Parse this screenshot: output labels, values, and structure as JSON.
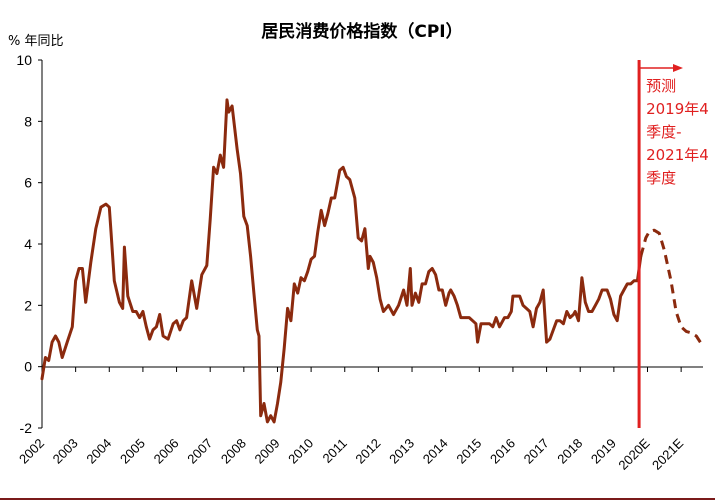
{
  "chart_data": {
    "type": "line",
    "title": "居民消费价格指数（CPI）",
    "ylabel": "% 年同比",
    "xlabel": "",
    "ylim": [
      -2,
      10
    ],
    "yticks": [
      -2,
      0,
      2,
      4,
      6,
      8,
      10
    ],
    "categories": [
      "2002",
      "2003",
      "2004",
      "2005",
      "2006",
      "2007",
      "2008",
      "2009",
      "2010",
      "2011",
      "2012",
      "2013",
      "2014",
      "2015",
      "2016",
      "2017",
      "2018",
      "2019",
      "2020E",
      "2021E"
    ],
    "grid": false,
    "legend": "none",
    "series": [
      {
        "style": "solid",
        "color": "#8b2a0e",
        "points": [
          [
            2002.0,
            -0.4
          ],
          [
            2002.1,
            0.3
          ],
          [
            2002.2,
            0.2
          ],
          [
            2002.3,
            0.8
          ],
          [
            2002.4,
            1.0
          ],
          [
            2002.5,
            0.8
          ],
          [
            2002.6,
            0.3
          ],
          [
            2002.75,
            0.8
          ],
          [
            2002.9,
            1.3
          ],
          [
            2003.0,
            2.8
          ],
          [
            2003.1,
            3.2
          ],
          [
            2003.2,
            3.2
          ],
          [
            2003.3,
            2.1
          ],
          [
            2003.45,
            3.4
          ],
          [
            2003.6,
            4.5
          ],
          [
            2003.75,
            5.2
          ],
          [
            2003.9,
            5.3
          ],
          [
            2004.0,
            5.2
          ],
          [
            2004.05,
            4.4
          ],
          [
            2004.15,
            2.8
          ],
          [
            2004.3,
            2.1
          ],
          [
            2004.4,
            1.9
          ],
          [
            2004.45,
            3.9
          ],
          [
            2004.55,
            2.3
          ],
          [
            2004.7,
            1.8
          ],
          [
            2004.8,
            1.8
          ],
          [
            2004.9,
            1.6
          ],
          [
            2005.0,
            1.8
          ],
          [
            2005.1,
            1.3
          ],
          [
            2005.2,
            0.9
          ],
          [
            2005.3,
            1.2
          ],
          [
            2005.4,
            1.3
          ],
          [
            2005.5,
            1.7
          ],
          [
            2005.6,
            1.0
          ],
          [
            2005.75,
            0.9
          ],
          [
            2005.9,
            1.4
          ],
          [
            2006.0,
            1.5
          ],
          [
            2006.1,
            1.2
          ],
          [
            2006.2,
            1.5
          ],
          [
            2006.3,
            1.6
          ],
          [
            2006.45,
            2.8
          ],
          [
            2006.6,
            1.9
          ],
          [
            2006.75,
            3.0
          ],
          [
            2006.9,
            3.3
          ],
          [
            2007.0,
            4.8
          ],
          [
            2007.1,
            6.5
          ],
          [
            2007.2,
            6.3
          ],
          [
            2007.3,
            6.9
          ],
          [
            2007.4,
            6.5
          ],
          [
            2007.5,
            8.7
          ],
          [
            2007.55,
            8.3
          ],
          [
            2007.65,
            8.5
          ],
          [
            2007.8,
            7.1
          ],
          [
            2007.9,
            6.3
          ],
          [
            2008.0,
            4.9
          ],
          [
            2008.1,
            4.6
          ],
          [
            2008.2,
            3.6
          ],
          [
            2008.3,
            2.4
          ],
          [
            2008.4,
            1.2
          ],
          [
            2008.45,
            1.0
          ],
          [
            2008.5,
            -1.6
          ],
          [
            2008.6,
            -1.2
          ],
          [
            2008.7,
            -1.8
          ],
          [
            2008.8,
            -1.6
          ],
          [
            2008.9,
            -1.8
          ],
          [
            2009.0,
            -1.2
          ],
          [
            2009.1,
            -0.5
          ],
          [
            2009.2,
            0.6
          ],
          [
            2009.3,
            1.9
          ],
          [
            2009.4,
            1.5
          ],
          [
            2009.5,
            2.7
          ],
          [
            2009.6,
            2.4
          ],
          [
            2009.7,
            2.9
          ],
          [
            2009.8,
            2.8
          ],
          [
            2009.9,
            3.1
          ],
          [
            2010.0,
            3.5
          ],
          [
            2010.1,
            3.6
          ],
          [
            2010.2,
            4.4
          ],
          [
            2010.3,
            5.1
          ],
          [
            2010.4,
            4.6
          ],
          [
            2010.5,
            5.0
          ],
          [
            2010.6,
            5.5
          ],
          [
            2010.7,
            5.5
          ],
          [
            2010.85,
            6.4
          ],
          [
            2010.95,
            6.5
          ],
          [
            2011.05,
            6.2
          ],
          [
            2011.15,
            6.1
          ],
          [
            2011.3,
            5.5
          ],
          [
            2011.4,
            4.2
          ],
          [
            2011.5,
            4.1
          ],
          [
            2011.6,
            4.5
          ],
          [
            2011.7,
            3.2
          ],
          [
            2011.75,
            3.6
          ],
          [
            2011.85,
            3.4
          ],
          [
            2011.95,
            2.9
          ],
          [
            2012.05,
            2.2
          ],
          [
            2012.15,
            1.8
          ],
          [
            2012.3,
            2.0
          ],
          [
            2012.45,
            1.7
          ],
          [
            2012.6,
            2.0
          ],
          [
            2012.75,
            2.5
          ],
          [
            2012.85,
            2.0
          ],
          [
            2012.95,
            3.2
          ],
          [
            2013.0,
            2.0
          ],
          [
            2013.1,
            2.4
          ],
          [
            2013.2,
            2.1
          ],
          [
            2013.3,
            2.7
          ],
          [
            2013.4,
            2.7
          ],
          [
            2013.5,
            3.1
          ],
          [
            2013.6,
            3.2
          ],
          [
            2013.7,
            3.0
          ],
          [
            2013.8,
            2.5
          ],
          [
            2013.9,
            2.5
          ],
          [
            2014.0,
            2.0
          ],
          [
            2014.1,
            2.4
          ],
          [
            2014.15,
            2.5
          ],
          [
            2014.25,
            2.3
          ],
          [
            2014.35,
            2.0
          ],
          [
            2014.45,
            1.6
          ],
          [
            2014.55,
            1.6
          ],
          [
            2014.7,
            1.6
          ],
          [
            2014.8,
            1.5
          ],
          [
            2014.9,
            1.4
          ],
          [
            2014.95,
            0.8
          ],
          [
            2015.05,
            1.4
          ],
          [
            2015.15,
            1.4
          ],
          [
            2015.3,
            1.4
          ],
          [
            2015.4,
            1.3
          ],
          [
            2015.5,
            1.6
          ],
          [
            2015.6,
            1.3
          ],
          [
            2015.75,
            1.6
          ],
          [
            2015.85,
            1.6
          ],
          [
            2015.95,
            1.8
          ],
          [
            2016.0,
            2.3
          ],
          [
            2016.1,
            2.3
          ],
          [
            2016.2,
            2.3
          ],
          [
            2016.3,
            2.0
          ],
          [
            2016.4,
            1.9
          ],
          [
            2016.5,
            1.8
          ],
          [
            2016.6,
            1.3
          ],
          [
            2016.7,
            1.9
          ],
          [
            2016.8,
            2.1
          ],
          [
            2016.9,
            2.5
          ],
          [
            2017.0,
            0.8
          ],
          [
            2017.1,
            0.9
          ],
          [
            2017.2,
            1.2
          ],
          [
            2017.3,
            1.5
          ],
          [
            2017.4,
            1.5
          ],
          [
            2017.5,
            1.4
          ],
          [
            2017.6,
            1.8
          ],
          [
            2017.7,
            1.6
          ],
          [
            2017.8,
            1.7
          ],
          [
            2017.85,
            1.8
          ],
          [
            2017.95,
            1.5
          ],
          [
            2018.05,
            2.9
          ],
          [
            2018.15,
            2.1
          ],
          [
            2018.25,
            1.8
          ],
          [
            2018.35,
            1.8
          ],
          [
            2018.45,
            2.0
          ],
          [
            2018.55,
            2.2
          ],
          [
            2018.65,
            2.5
          ],
          [
            2018.8,
            2.5
          ],
          [
            2018.9,
            2.2
          ],
          [
            2019.0,
            1.7
          ],
          [
            2019.1,
            1.5
          ],
          [
            2019.2,
            2.3
          ],
          [
            2019.3,
            2.5
          ],
          [
            2019.4,
            2.7
          ],
          [
            2019.5,
            2.7
          ],
          [
            2019.6,
            2.8
          ],
          [
            2019.7,
            2.8
          ],
          [
            2019.8,
            3.6
          ]
        ]
      },
      {
        "style": "dashed",
        "color": "#8b2a0e",
        "points": [
          [
            2019.8,
            3.6
          ],
          [
            2019.95,
            4.2
          ],
          [
            2020.05,
            4.4
          ],
          [
            2020.2,
            4.45
          ],
          [
            2020.35,
            4.35
          ],
          [
            2020.5,
            3.8
          ],
          [
            2020.7,
            2.8
          ],
          [
            2020.85,
            1.8
          ],
          [
            2021.0,
            1.3
          ],
          [
            2021.15,
            1.15
          ],
          [
            2021.3,
            1.1
          ],
          [
            2021.45,
            1.0
          ],
          [
            2021.6,
            0.75
          ]
        ]
      }
    ],
    "forecast_marker": {
      "x": 2019.75,
      "color": "#e02020"
    },
    "annotation": [
      "预测",
      "2019年4",
      "季度-",
      "2021年4",
      "季度"
    ]
  }
}
